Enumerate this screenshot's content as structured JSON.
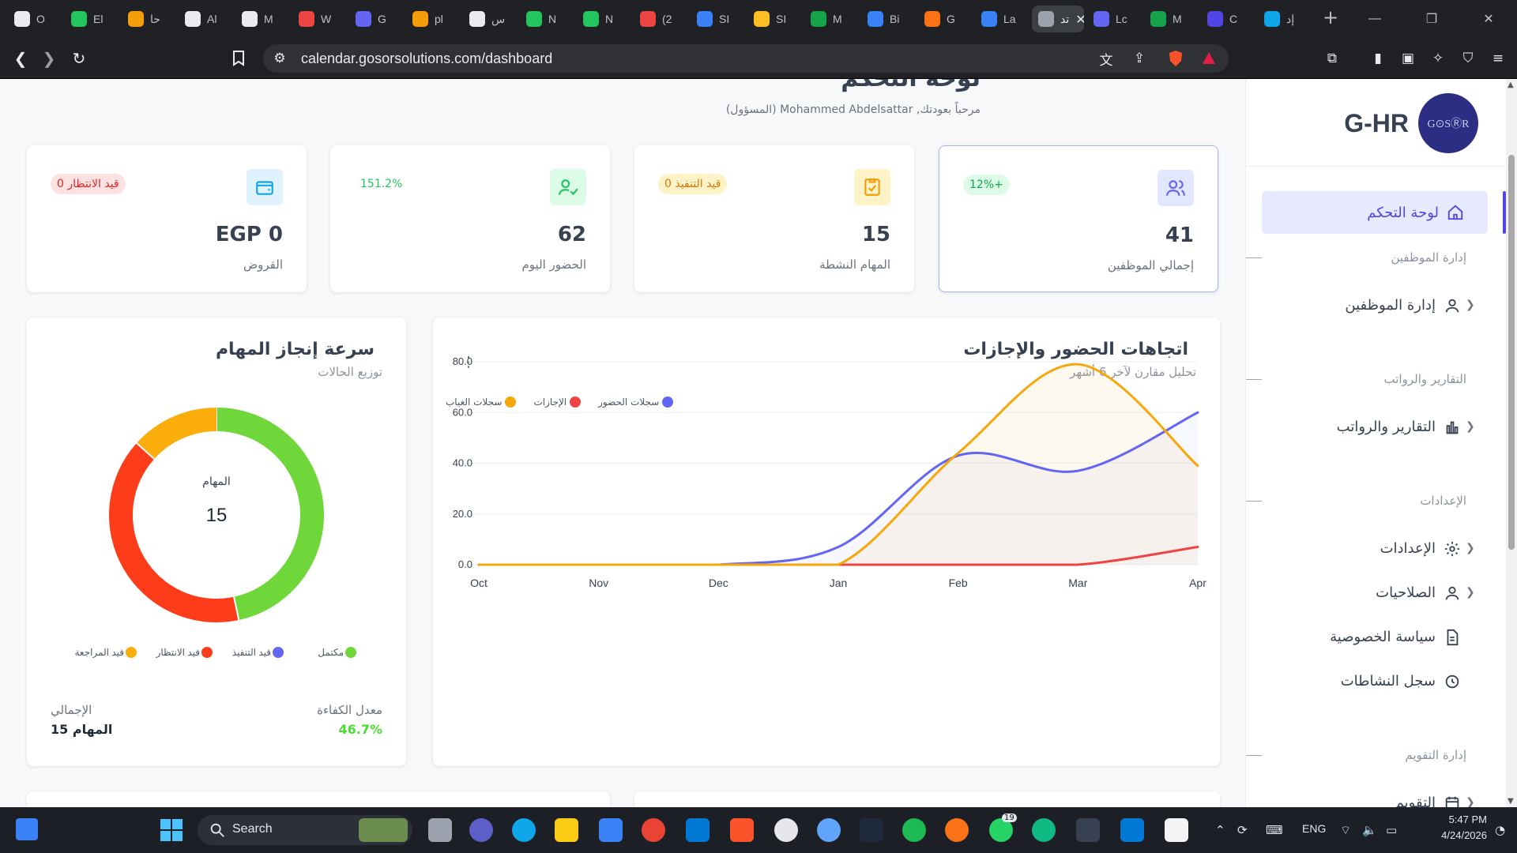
{
  "browser": {
    "tabs": [
      {
        "label": "O",
        "color": "#e8eaed"
      },
      {
        "label": "El",
        "color": "#22c55e"
      },
      {
        "label": "ﺣﺎ",
        "color": "#f59e0b"
      },
      {
        "label": "Al",
        "color": "#e8eaed"
      },
      {
        "label": "M",
        "color": "#e8eaed"
      },
      {
        "label": "W",
        "color": "#ef4444"
      },
      {
        "label": "G",
        "color": "#6366f1"
      },
      {
        "label": "pl",
        "color": "#f59e0b"
      },
      {
        "label": "ﺱ",
        "color": "#e8eaed"
      },
      {
        "label": "N",
        "color": "#22c55e"
      },
      {
        "label": "N",
        "color": "#22c55e"
      },
      {
        "label": "(2",
        "color": "#ef4444"
      },
      {
        "label": "SI",
        "color": "#3b82f6"
      },
      {
        "label": "SI",
        "color": "#fbbf24"
      },
      {
        "label": "M",
        "color": "#16a34a"
      },
      {
        "label": "Bi",
        "color": "#3b82f6"
      },
      {
        "label": "G",
        "color": "#f97316"
      },
      {
        "label": "La",
        "color": "#3b82f6"
      },
      {
        "label": "ﺗﺪ",
        "color": "#9ca3af",
        "active": true
      },
      {
        "label": "Lc",
        "color": "#6366f1"
      },
      {
        "label": "M",
        "color": "#16a34a"
      },
      {
        "label": "C",
        "color": "#4f46e5"
      },
      {
        "label": "إد",
        "color": "#0ea5e9"
      }
    ],
    "url_host": "calendar.gosorsolutions.com",
    "url_path": "/dashboard",
    "new_tab": "+",
    "win_min": "—",
    "win_max": "❐",
    "win_close": "✕"
  },
  "sidebar": {
    "brand_name": "G-HR",
    "logo_text": "G⊙SⓇR",
    "active_item": "لوحة التحكم",
    "sections": [
      {
        "heading": "إدارة الموظفين",
        "items": [
          {
            "label": "إدارة الموظفين",
            "icon": "user-icon",
            "chevron": true
          }
        ]
      },
      {
        "heading": "التقارير والرواتب",
        "items": [
          {
            "label": "التقارير والرواتب",
            "icon": "bar-chart-icon",
            "chevron": true
          }
        ]
      },
      {
        "heading": "الإعدادات",
        "items": [
          {
            "label": "الإعدادات",
            "icon": "gear-icon",
            "chevron": true
          },
          {
            "label": "الصلاحيات",
            "icon": "user-icon",
            "chevron": true
          },
          {
            "label": "سياسة الخصوصية",
            "icon": "document-icon",
            "chevron": false
          },
          {
            "label": "سجل النشاطات",
            "icon": "history-icon",
            "chevron": false
          }
        ]
      },
      {
        "heading": "إدارة التقويم",
        "items": [
          {
            "label": "التقويم",
            "icon": "calendar-icon",
            "chevron": true
          }
        ]
      }
    ]
  },
  "header": {
    "title": "لوحة التحكم",
    "welcome": "مرحباً بعودتك, Mohammed Abdelsattar (المسؤول)"
  },
  "stats": [
    {
      "value": "41",
      "label": "إجمالي الموظفين",
      "badge": "12%+",
      "icon": "users-icon",
      "color": "#6366f1",
      "badge_bg": "#dcfce7",
      "badge_color": "#16a34a"
    },
    {
      "value": "15",
      "label": "المهام النشطة",
      "badge": "0 قيد التنفيذ",
      "icon": "clipboard-check-icon",
      "color": "#f59e0b",
      "badge_bg": "#fef3c7",
      "badge_color": "#d97706"
    },
    {
      "value": "62",
      "label": "الحضور اليوم",
      "badge": "151.2%",
      "icon": "user-check-icon",
      "color": "#22c55e",
      "badge_bg": "#ffffff",
      "badge_color": "#22c55e"
    },
    {
      "value": "EGP 0",
      "label": "القروض",
      "badge": "0 قيد الانتظار",
      "icon": "wallet-icon",
      "color": "#0ea5e9",
      "badge_bg": "#fee2e2",
      "badge_color": "#dc2626"
    }
  ],
  "trend_chart": {
    "title": "اتجاهات الحضور والإجازات",
    "subtitle": "تحليل مقارن لآخر 6 أشهر"
  },
  "donut_chart": {
    "title": "سرعة إنجاز المهام",
    "subtitle": "توزيع الحالات",
    "center_label": "المهام",
    "center_value": "15",
    "rate_label": "معدل الكفاءة",
    "rate_value": "46.7%",
    "total_label": "الإجمالي",
    "total_value": "15 المهام"
  },
  "chart_data": [
    {
      "type": "line",
      "x": [
        "Oct",
        "Nov",
        "Dec",
        "Jan",
        "Feb",
        "Mar",
        "Apr"
      ],
      "ylim": [
        0,
        80
      ],
      "yticks": [
        "0.0",
        "20.0",
        "40.0",
        "60.0",
        "80.0"
      ],
      "legend_position": "top-left",
      "series": [
        {
          "name": "سجلات الحضور",
          "color": "#6366f1",
          "values": [
            0,
            0,
            0,
            7,
            43,
            37,
            60
          ]
        },
        {
          "name": "الإجازات",
          "color": "#ef4444",
          "values": [
            0,
            0,
            0,
            0,
            0,
            0,
            7
          ]
        },
        {
          "name": "سجلات الغياب",
          "color": "#f5a70b",
          "values": [
            0,
            0,
            0,
            0,
            44,
            79,
            39
          ]
        }
      ]
    },
    {
      "type": "pie",
      "categories": [
        "مكتمل",
        "قيد التنفيذ",
        "قيد الانتظار",
        "قيد المراجعة"
      ],
      "values": [
        7,
        0,
        6,
        2
      ],
      "colors": [
        "#6fd739",
        "#6366f1",
        "#fd3d1a",
        "#fbad0b"
      ],
      "legend_position": "bottom"
    }
  ],
  "taskbar": {
    "search_placeholder": "Search",
    "lang": "ENG",
    "time": "5:47 PM",
    "date": "4/24/2026",
    "badge_count": "19"
  }
}
